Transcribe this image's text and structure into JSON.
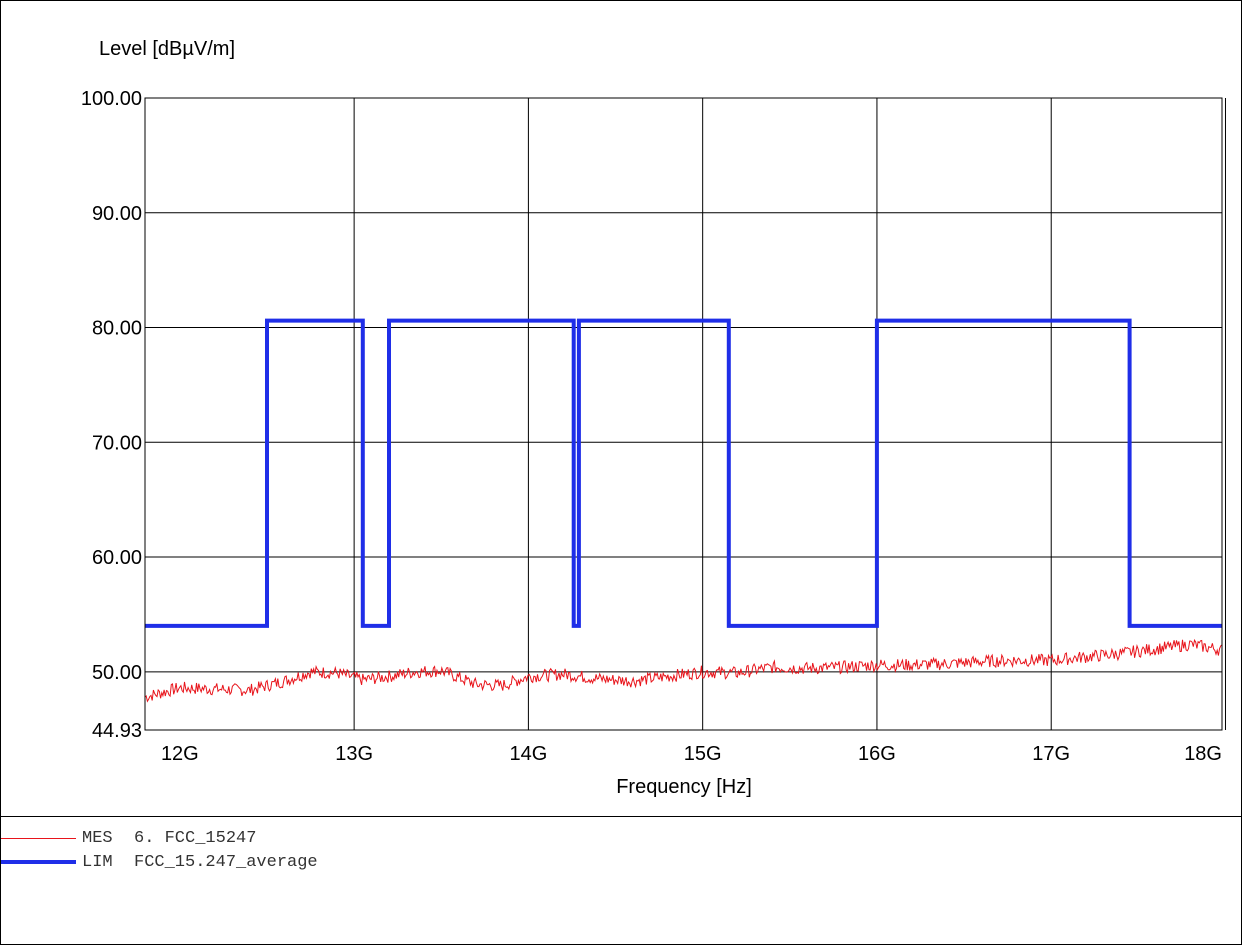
{
  "chart_data": {
    "type": "line",
    "ylabel": "Level [dBµV/m]",
    "xlabel": "Frequency [Hz]",
    "xlim": [
      11.8,
      17.98
    ],
    "ylim": [
      44.93,
      100.0
    ],
    "xticks": [
      12,
      13,
      14,
      15,
      16,
      17,
      18
    ],
    "xtick_labels": [
      "12G",
      "13G",
      "14G",
      "15G",
      "16G",
      "17G",
      "18G"
    ],
    "yticks": [
      44.93,
      50.0,
      60.0,
      70.0,
      80.0,
      90.0,
      100.0
    ],
    "ytick_labels": [
      "44.93",
      "50.00",
      "60.00",
      "70.00",
      "80.00",
      "90.00",
      "100.00"
    ],
    "grid": true,
    "legend_position": "bottom-left",
    "series": [
      {
        "name": "MES",
        "legend_tag": "MES",
        "legend_text": "6. FCC_15247",
        "color": "#e8141b",
        "style": "noisy-line",
        "x": [
          11.8,
          12.0,
          12.2,
          12.4,
          12.6,
          12.75,
          12.9,
          13.05,
          13.2,
          13.35,
          13.5,
          13.7,
          13.85,
          14.0,
          14.2,
          14.4,
          14.6,
          14.8,
          15.0,
          15.2,
          15.4,
          15.6,
          15.8,
          16.0,
          16.2,
          16.4,
          16.6,
          16.8,
          17.0,
          17.2,
          17.4,
          17.6,
          17.8,
          17.98
        ],
        "y": [
          47.8,
          48.6,
          48.5,
          48.4,
          49.2,
          50.0,
          49.9,
          49.3,
          49.6,
          50.0,
          50.1,
          48.9,
          48.8,
          49.6,
          49.8,
          49.4,
          49.2,
          49.6,
          50.0,
          49.9,
          50.4,
          50.3,
          50.4,
          50.6,
          50.6,
          50.7,
          50.9,
          51.0,
          51.0,
          51.3,
          51.6,
          52.0,
          52.4,
          51.9
        ]
      },
      {
        "name": "LIM",
        "legend_tag": "LIM",
        "legend_text": "FCC_15.247_average",
        "color": "#1f2ee8",
        "style": "step",
        "x": [
          11.8,
          12.5,
          12.5,
          13.05,
          13.05,
          13.2,
          13.2,
          14.26,
          14.26,
          14.29,
          14.29,
          15.15,
          15.15,
          16.0,
          16.0,
          17.45,
          17.45,
          17.98
        ],
        "y": [
          54.0,
          54.0,
          80.6,
          80.6,
          54.0,
          54.0,
          80.6,
          80.6,
          54.0,
          54.0,
          80.6,
          80.6,
          54.0,
          54.0,
          80.6,
          80.6,
          54.0,
          54.0
        ]
      }
    ]
  }
}
